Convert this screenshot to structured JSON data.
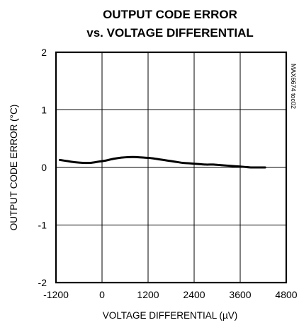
{
  "chart_data": {
    "type": "line",
    "title_lines": [
      "OUTPUT CODE ERROR",
      "vs. VOLTAGE DIFFERENTIAL"
    ],
    "xlabel": "VOLTAGE DIFFERENTIAL (µV)",
    "ylabel": "OUTPUT CODE ERROR (°C)",
    "side_label": "MAX6674 toc02",
    "xlim": [
      -1200,
      4800
    ],
    "ylim": [
      -2,
      2
    ],
    "xticks": [
      -1200,
      0,
      1200,
      2400,
      3600,
      4800
    ],
    "yticks": [
      -2,
      -1,
      0,
      1,
      2
    ],
    "grid": true,
    "series": [
      {
        "x": [
          -1100,
          -900,
          -700,
          -500,
          -300,
          -100,
          100,
          300,
          500,
          700,
          900,
          1100,
          1300,
          1500,
          1700,
          1900,
          2100,
          2300,
          2500,
          2700,
          2900,
          3100,
          3300,
          3500,
          3700,
          3900,
          4100,
          4250
        ],
        "y": [
          0.13,
          0.11,
          0.09,
          0.08,
          0.08,
          0.1,
          0.12,
          0.15,
          0.17,
          0.18,
          0.18,
          0.17,
          0.16,
          0.14,
          0.12,
          0.1,
          0.08,
          0.07,
          0.06,
          0.05,
          0.05,
          0.04,
          0.03,
          0.02,
          0.01,
          0.0,
          0.0,
          0.0
        ]
      }
    ]
  }
}
